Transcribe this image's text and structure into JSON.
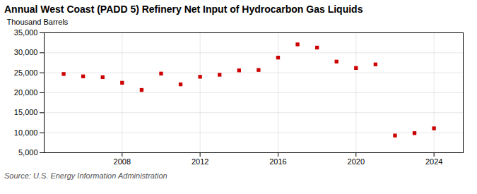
{
  "chart_data": {
    "type": "scatter",
    "title": "Annual West Coast (PADD 5) Refinery Net Input of Hydrocarbon Gas Liquids",
    "ylabel": "Thousand Barrels",
    "annotations": [
      "Source: U.S. Energy Information Administration"
    ],
    "x": [
      2005,
      2006,
      2007,
      2008,
      2009,
      2010,
      2011,
      2012,
      2013,
      2014,
      2015,
      2016,
      2017,
      2018,
      2019,
      2020,
      2021,
      2022,
      2023,
      2024
    ],
    "values": [
      24700,
      24100,
      23900,
      22500,
      20700,
      24800,
      22100,
      24000,
      24500,
      25600,
      25700,
      28800,
      32100,
      31300,
      27800,
      26200,
      27100,
      9300,
      9900,
      11100
    ],
    "color": "#cc0000",
    "marker": "square",
    "xlim": [
      2004.0,
      2025.5
    ],
    "xticks": [
      2008,
      2012,
      2016,
      2020,
      2024
    ],
    "ylim": [
      5000,
      35000
    ],
    "yticks": [
      {
        "value": 5000,
        "label": "5,000"
      },
      {
        "value": 10000,
        "label": "10,000"
      },
      {
        "value": 15000,
        "label": "15,000"
      },
      {
        "value": 20000,
        "label": "20,000"
      },
      {
        "value": 25000,
        "label": "25,000"
      },
      {
        "value": 30000,
        "label": "30,000"
      },
      {
        "value": 35000,
        "label": "35,000"
      }
    ],
    "grid": true
  }
}
